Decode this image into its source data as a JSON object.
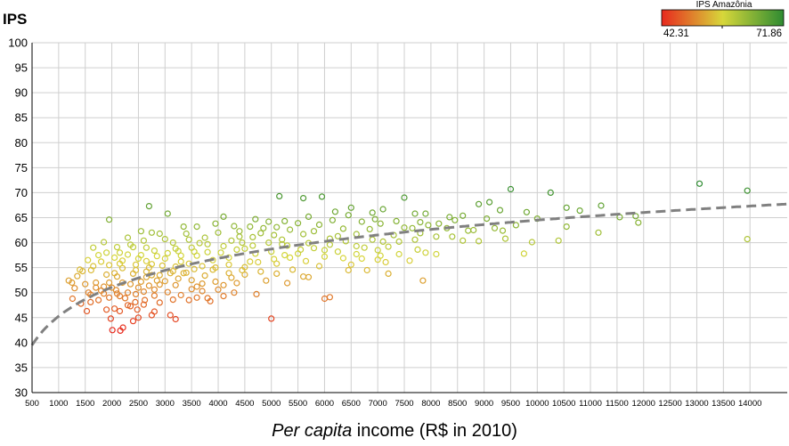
{
  "chart_data": {
    "type": "scatter",
    "ylabel": "IPS",
    "xlabel_italic": "Per capita",
    "xlabel_rest": " income (R$ in 2010)",
    "xlim": [
      500,
      14700
    ],
    "ylim": [
      30,
      100
    ],
    "x_ticks": [
      500,
      1000,
      1500,
      2000,
      2500,
      3000,
      3500,
      4000,
      4500,
      5000,
      5500,
      6000,
      6500,
      7000,
      7500,
      8000,
      8500,
      9000,
      9500,
      10000,
      10500,
      11000,
      11500,
      12000,
      12500,
      13000,
      13500,
      14000
    ],
    "y_ticks": [
      30,
      35,
      40,
      45,
      50,
      55,
      60,
      65,
      70,
      75,
      80,
      85,
      90,
      95,
      100
    ],
    "legend": {
      "title": "IPS Amazônia",
      "min_label": "42.31",
      "max_label": "71.86",
      "min": 42.31,
      "max": 71.86
    },
    "colors": {
      "low": "#e8291e",
      "mid": "#d7d73a",
      "high": "#2e8b32",
      "trend": "#808080",
      "grid": "#cfcfcf"
    },
    "trend": {
      "a": -12.4,
      "b": 8.35,
      "x_start": 500,
      "x_end": 14700
    },
    "points": [
      [
        2010,
        42.5
      ],
      [
        2160,
        42.4
      ],
      [
        2210,
        43.0
      ],
      [
        2400,
        44.3
      ],
      [
        2500,
        45.0
      ],
      [
        1980,
        44.8
      ],
      [
        2480,
        46.6
      ],
      [
        3100,
        45.5
      ],
      [
        3200,
        44.7
      ],
      [
        2750,
        45.5
      ],
      [
        5000,
        44.8
      ],
      [
        1530,
        46.3
      ],
      [
        2050,
        46.8
      ],
      [
        2300,
        47.5
      ],
      [
        2440,
        48.1
      ],
      [
        2150,
        49.3
      ],
      [
        2620,
        48.5
      ],
      [
        2800,
        49.4
      ],
      [
        1420,
        47.8
      ],
      [
        1600,
        48.1
      ],
      [
        1750,
        48.5
      ],
      [
        1260,
        48.8
      ],
      [
        1850,
        49.8
      ],
      [
        3600,
        49.0
      ],
      [
        3850,
        48.3
      ],
      [
        4720,
        49.7
      ],
      [
        6000,
        48.8
      ],
      [
        6100,
        49.1
      ],
      [
        1190,
        52.4
      ],
      [
        1560,
        50.0
      ],
      [
        2300,
        50.0
      ],
      [
        2080,
        50.5
      ],
      [
        1450,
        54.3
      ],
      [
        1610,
        54.5
      ],
      [
        1300,
        50.9
      ],
      [
        2500,
        51.0
      ],
      [
        2900,
        51.6
      ],
      [
        3200,
        51.5
      ],
      [
        4350,
        51.9
      ],
      [
        5300,
        51.9
      ],
      [
        7850,
        52.4
      ],
      [
        1950,
        52.0
      ],
      [
        2100,
        53.2
      ],
      [
        2400,
        53.8
      ],
      [
        2650,
        53.1
      ],
      [
        2900,
        53.5
      ],
      [
        3100,
        53.9
      ],
      [
        3400,
        54.0
      ],
      [
        3750,
        53.4
      ],
      [
        4200,
        53.9
      ],
      [
        5600,
        53.2
      ],
      [
        6800,
        54.5
      ],
      [
        7200,
        53.8
      ],
      [
        1650,
        55.3
      ],
      [
        1950,
        55.5
      ],
      [
        2200,
        56.4
      ],
      [
        2500,
        56.8
      ],
      [
        2750,
        55.7
      ],
      [
        3000,
        56.8
      ],
      [
        3300,
        56.2
      ],
      [
        3600,
        57.4
      ],
      [
        3900,
        56.5
      ],
      [
        4200,
        57.0
      ],
      [
        4600,
        56.2
      ],
      [
        5100,
        55.8
      ],
      [
        5900,
        55.3
      ],
      [
        6500,
        55.6
      ],
      [
        7000,
        56.6
      ],
      [
        7600,
        56.4
      ],
      [
        8100,
        57.7
      ],
      [
        9750,
        57.8
      ],
      [
        1750,
        57.5
      ],
      [
        1900,
        58.0
      ],
      [
        2150,
        58.0
      ],
      [
        2400,
        59.1
      ],
      [
        2650,
        59.0
      ],
      [
        2850,
        57.3
      ],
      [
        3200,
        58.8
      ],
      [
        3500,
        59.0
      ],
      [
        3800,
        59.7
      ],
      [
        4100,
        59.3
      ],
      [
        4500,
        58.8
      ],
      [
        5000,
        58.2
      ],
      [
        5500,
        57.8
      ],
      [
        6000,
        58.5
      ],
      [
        6600,
        57.7
      ],
      [
        7000,
        58.5
      ],
      [
        7900,
        58.0
      ],
      [
        2300,
        61.0
      ],
      [
        2750,
        62.0
      ],
      [
        3000,
        60.7
      ],
      [
        3400,
        61.8
      ],
      [
        3750,
        61.0
      ],
      [
        4000,
        62.0
      ],
      [
        4400,
        61.2
      ],
      [
        4800,
        61.9
      ],
      [
        5200,
        60.6
      ],
      [
        5600,
        61.7
      ],
      [
        6100,
        60.8
      ],
      [
        6600,
        61.7
      ],
      [
        7100,
        60.2
      ],
      [
        7700,
        60.6
      ],
      [
        8400,
        61.2
      ],
      [
        8900,
        60.3
      ],
      [
        9400,
        60.8
      ],
      [
        9900,
        60.1
      ],
      [
        10400,
        60.4
      ],
      [
        1950,
        64.6
      ],
      [
        2700,
        67.3
      ],
      [
        3050,
        65.8
      ],
      [
        3600,
        63.2
      ],
      [
        3950,
        63.8
      ],
      [
        4100,
        65.2
      ],
      [
        4600,
        63.2
      ],
      [
        4950,
        64.2
      ],
      [
        5150,
        69.3
      ],
      [
        5600,
        68.9
      ],
      [
        5950,
        69.2
      ],
      [
        6200,
        66.2
      ],
      [
        6500,
        67.0
      ],
      [
        6900,
        66.0
      ],
      [
        7100,
        66.7
      ],
      [
        7500,
        69.0
      ],
      [
        7700,
        65.8
      ],
      [
        7900,
        65.8
      ],
      [
        8350,
        65.1
      ],
      [
        8600,
        65.4
      ],
      [
        8900,
        67.7
      ],
      [
        9100,
        68.1
      ],
      [
        9500,
        70.7
      ],
      [
        9300,
        66.5
      ],
      [
        9800,
        66.1
      ],
      [
        10250,
        70.0
      ],
      [
        10000,
        64.8
      ],
      [
        10550,
        67.0
      ],
      [
        10800,
        66.4
      ],
      [
        11200,
        67.4
      ],
      [
        11550,
        65.1
      ],
      [
        11850,
        65.3
      ],
      [
        11900,
        64.0
      ],
      [
        11150,
        62.0
      ],
      [
        13050,
        71.8
      ],
      [
        13950,
        70.4
      ],
      [
        13950,
        60.7
      ],
      [
        9600,
        63.5
      ],
      [
        9200,
        62.9
      ],
      [
        8700,
        62.4
      ],
      [
        8300,
        62.9
      ],
      [
        7950,
        63.5
      ],
      [
        7500,
        63.0
      ],
      [
        7050,
        63.8
      ],
      [
        6700,
        64.2
      ],
      [
        6350,
        62.8
      ],
      [
        5900,
        63.6
      ],
      [
        5500,
        63.9
      ],
      [
        5100,
        63.1
      ],
      [
        4700,
        64.7
      ],
      [
        4300,
        63.3
      ],
      [
        10550,
        63.2
      ],
      [
        9050,
        64.8
      ],
      [
        1350,
        53.3
      ],
      [
        1500,
        51.7
      ],
      [
        1700,
        52.0
      ],
      [
        1850,
        51.2
      ],
      [
        2000,
        51.0
      ],
      [
        2200,
        52.0
      ],
      [
        2350,
        51.7
      ],
      [
        2550,
        52.2
      ],
      [
        2700,
        51.4
      ],
      [
        2850,
        52.4
      ],
      [
        3000,
        52.3
      ],
      [
        3250,
        52.8
      ],
      [
        3500,
        52.5
      ],
      [
        3700,
        51.8
      ],
      [
        3950,
        52.2
      ],
      [
        4250,
        53.0
      ],
      [
        4500,
        53.6
      ],
      [
        4800,
        54.2
      ],
      [
        5100,
        53.8
      ],
      [
        5400,
        54.6
      ],
      [
        1600,
        49.6
      ],
      [
        1800,
        50.4
      ],
      [
        1950,
        49.0
      ],
      [
        2100,
        49.8
      ],
      [
        2250,
        48.9
      ],
      [
        2450,
        49.7
      ],
      [
        2600,
        50.2
      ],
      [
        2800,
        50.6
      ],
      [
        3050,
        50.1
      ],
      [
        3300,
        49.5
      ],
      [
        3500,
        50.7
      ],
      [
        3700,
        50.3
      ],
      [
        4000,
        50.6
      ],
      [
        4300,
        50.0
      ],
      [
        1550,
        56.5
      ],
      [
        1800,
        56.2
      ],
      [
        2050,
        57.0
      ],
      [
        2300,
        57.6
      ],
      [
        2550,
        57.5
      ],
      [
        2800,
        58.4
      ],
      [
        3050,
        57.9
      ],
      [
        3300,
        57.4
      ],
      [
        3550,
        58.2
      ],
      [
        3800,
        58.1
      ],
      [
        4050,
        58.0
      ],
      [
        4350,
        58.6
      ],
      [
        4650,
        59.4
      ],
      [
        4950,
        60.0
      ],
      [
        5300,
        59.4
      ],
      [
        5700,
        59.9
      ],
      [
        6100,
        59.6
      ],
      [
        6400,
        60.3
      ],
      [
        6750,
        59.0
      ],
      [
        7200,
        59.2
      ],
      [
        7400,
        60.2
      ],
      [
        7800,
        61.9
      ],
      [
        8100,
        61.2
      ],
      [
        8800,
        62.5
      ],
      [
        2200,
        54.9
      ],
      [
        2450,
        54.5
      ],
      [
        2700,
        55.0
      ],
      [
        2950,
        55.4
      ],
      [
        3200,
        55.2
      ],
      [
        3450,
        55.8
      ],
      [
        3700,
        55.3
      ],
      [
        3950,
        55.0
      ],
      [
        4200,
        55.6
      ],
      [
        4500,
        55.1
      ],
      [
        4750,
        56.1
      ],
      [
        5050,
        56.7
      ],
      [
        5350,
        57.0
      ],
      [
        5650,
        56.3
      ],
      [
        6000,
        57.2
      ],
      [
        6350,
        56.9
      ],
      [
        6700,
        56.8
      ],
      [
        7050,
        57.4
      ],
      [
        7400,
        57.7
      ],
      [
        2050,
        53.9
      ],
      [
        2600,
        60.4
      ],
      [
        3150,
        60.0
      ],
      [
        3450,
        60.6
      ],
      [
        3650,
        59.9
      ],
      [
        4250,
        60.4
      ],
      [
        4650,
        61.1
      ],
      [
        5050,
        61.5
      ],
      [
        5350,
        62.6
      ],
      [
        5800,
        62.3
      ],
      [
        6250,
        61.3
      ],
      [
        6850,
        62.7
      ],
      [
        7300,
        61.5
      ],
      [
        7650,
        62.9
      ],
      [
        8150,
        63.8
      ],
      [
        3350,
        63.2
      ],
      [
        2900,
        61.8
      ],
      [
        2550,
        62.3
      ],
      [
        2350,
        59.6
      ],
      [
        2100,
        59.1
      ],
      [
        1850,
        60.1
      ],
      [
        1650,
        59.0
      ],
      [
        1400,
        54.6
      ],
      [
        1250,
        52.0
      ],
      [
        1700,
        51.0
      ],
      [
        1900,
        53.6
      ],
      [
        2650,
        56.3
      ],
      [
        2750,
        53.5
      ],
      [
        3150,
        54.3
      ],
      [
        3350,
        53.9
      ],
      [
        3550,
        54.7
      ],
      [
        3600,
        51.2
      ],
      [
        4100,
        51.5
      ],
      [
        4450,
        54.5
      ],
      [
        4900,
        52.4
      ],
      [
        5250,
        57.5
      ],
      [
        5550,
        58.6
      ],
      [
        5800,
        58.9
      ],
      [
        6250,
        58.2
      ],
      [
        6600,
        59.3
      ],
      [
        6900,
        60.6
      ],
      [
        4400,
        62.3
      ],
      [
        4850,
        62.9
      ],
      [
        5250,
        64.3
      ],
      [
        5700,
        65.2
      ],
      [
        6150,
        64.5
      ],
      [
        6450,
        65.5
      ],
      [
        6950,
        64.7
      ],
      [
        7350,
        64.3
      ],
      [
        7800,
        64.1
      ],
      [
        8450,
        64.5
      ],
      [
        2150,
        46.3
      ],
      [
        2350,
        47.3
      ],
      [
        2600,
        47.6
      ],
      [
        2900,
        48.0
      ],
      [
        3150,
        48.6
      ],
      [
        3450,
        48.5
      ],
      [
        1900,
        46.6
      ],
      [
        2800,
        46.2
      ],
      [
        9350,
        62.4
      ],
      [
        8600,
        60.4
      ],
      [
        7750,
        58.6
      ],
      [
        7150,
        56.1
      ],
      [
        6450,
        54.5
      ],
      [
        5700,
        53.1
      ],
      [
        3800,
        48.9
      ],
      [
        4100,
        49.3
      ],
      [
        2450,
        55.6
      ],
      [
        2650,
        54.2
      ],
      [
        2150,
        55.8
      ],
      [
        3900,
        54.6
      ],
      [
        4700,
        57.8
      ],
      [
        5200,
        59.7
      ],
      [
        3250,
        58.3
      ],
      [
        4450,
        60.0
      ]
    ]
  }
}
